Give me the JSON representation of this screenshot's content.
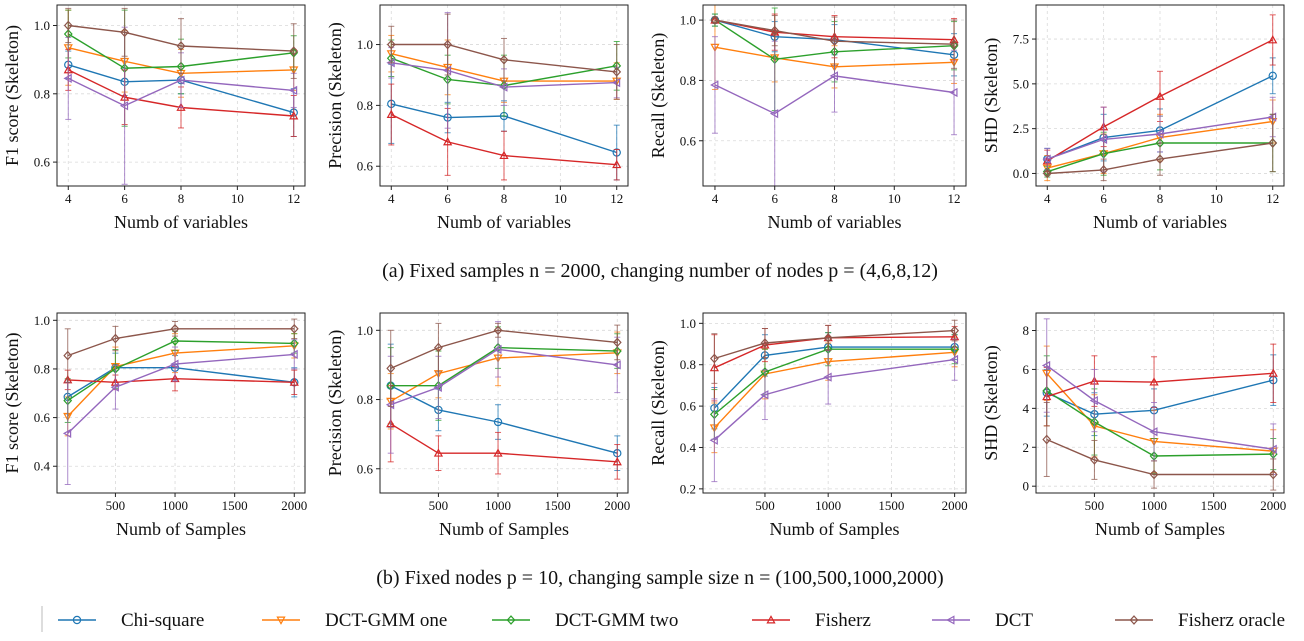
{
  "captions": {
    "a": "(a) Fixed samples n = 2000, changing number of nodes p = (4,6,8,12)",
    "b": "(b) Fixed nodes p = 10, changing sample size n = (100,500,1000,2000)"
  },
  "legend": {
    "items": [
      {
        "label": "Chi-square",
        "color": "#1f77b4",
        "marker": "circle"
      },
      {
        "label": "DCT-GMM  one",
        "color": "#ff7f0e",
        "marker": "triangle-down"
      },
      {
        "label": "DCT-GMM  two",
        "color": "#2ca02c",
        "marker": "diamond"
      },
      {
        "label": "Fisherz",
        "color": "#d62728",
        "marker": "triangle-up"
      },
      {
        "label": "DCT",
        "color": "#9467bd",
        "marker": "triangle-left"
      },
      {
        "label": "Fisherz  oracle",
        "color": "#8c564b",
        "marker": "diamond"
      }
    ]
  },
  "chart_data": [
    {
      "type": "line",
      "row": "a",
      "xlabel": "Numb of variables",
      "ylabel": "F1 score (Skeleton)",
      "x": [
        4,
        6,
        8,
        12
      ],
      "xticks": [
        4,
        6,
        8,
        10,
        12
      ],
      "xlim": [
        3.6,
        12.4
      ],
      "yticks": [
        0.6,
        0.8,
        1.0
      ],
      "ylim": [
        0.53,
        1.06
      ],
      "grid": true,
      "series": [
        {
          "name": "Chi-square",
          "values": [
            0.885,
            0.835,
            0.84,
            0.745
          ],
          "err": [
            0.04,
            0.04,
            0.04,
            0.07
          ]
        },
        {
          "name": "DCT-GMM  one",
          "values": [
            0.935,
            0.895,
            0.86,
            0.87
          ],
          "err": [
            0.11,
            0.09,
            0.07,
            0.06
          ]
        },
        {
          "name": "DCT-GMM  two",
          "values": [
            0.975,
            0.875,
            0.88,
            0.92
          ],
          "err": [
            0.07,
            0.17,
            0.08,
            0.05
          ]
        },
        {
          "name": "Fisherz",
          "values": [
            0.87,
            0.79,
            0.76,
            0.735
          ],
          "err": [
            0.06,
            0.08,
            0.06,
            0.06
          ]
        },
        {
          "name": "DCT",
          "values": [
            0.845,
            0.765,
            0.84,
            0.81
          ],
          "err": [
            0.12,
            0.23,
            0.08,
            0.05
          ]
        },
        {
          "name": "Fisherz  oracle",
          "values": [
            1.0,
            0.98,
            0.94,
            0.925
          ],
          "err": [
            0.05,
            0.07,
            0.08,
            0.08
          ]
        }
      ]
    },
    {
      "type": "line",
      "row": "a",
      "xlabel": "Numb of variables",
      "ylabel": "Precision (Skeleton)",
      "x": [
        4,
        6,
        8,
        12
      ],
      "xticks": [
        4,
        6,
        8,
        10,
        12
      ],
      "xlim": [
        3.6,
        12.4
      ],
      "yticks": [
        0.6,
        0.8,
        1.0
      ],
      "ylim": [
        0.535,
        1.13
      ],
      "grid": true,
      "series": [
        {
          "name": "Chi-square",
          "values": [
            0.805,
            0.76,
            0.765,
            0.645
          ],
          "err": [
            0.13,
            0.05,
            0.05,
            0.09
          ]
        },
        {
          "name": "DCT-GMM  one",
          "values": [
            0.97,
            0.925,
            0.88,
            0.88
          ],
          "err": [
            0.06,
            0.09,
            0.07,
            0.06
          ]
        },
        {
          "name": "DCT-GMM  two",
          "values": [
            0.955,
            0.885,
            0.865,
            0.93
          ],
          "err": [
            0.06,
            0.08,
            0.1,
            0.08
          ]
        },
        {
          "name": "Fisherz",
          "values": [
            0.77,
            0.68,
            0.635,
            0.605
          ],
          "err": [
            0.1,
            0.11,
            0.08,
            0.05
          ]
        },
        {
          "name": "DCT",
          "values": [
            0.94,
            0.915,
            0.86,
            0.875
          ],
          "err": [
            0.05,
            0.19,
            0.06,
            0.05
          ]
        },
        {
          "name": "Fisherz  oracle",
          "values": [
            1.0,
            1.0,
            0.95,
            0.91
          ],
          "err": [
            0.06,
            0.1,
            0.07,
            0.09
          ]
        }
      ]
    },
    {
      "type": "line",
      "row": "a",
      "xlabel": "Numb of variables",
      "ylabel": "Recall (Skeleton)",
      "x": [
        4,
        6,
        8,
        12
      ],
      "xticks": [
        4,
        6,
        8,
        10,
        12
      ],
      "xlim": [
        3.6,
        12.4
      ],
      "yticks": [
        0.6,
        0.8,
        1.0
      ],
      "ylim": [
        0.45,
        1.05
      ],
      "grid": true,
      "series": [
        {
          "name": "Chi-square",
          "values": [
            1.0,
            0.945,
            0.935,
            0.885
          ],
          "err": [
            0.02,
            0.05,
            0.05,
            0.07
          ]
        },
        {
          "name": "DCT-GMM  one",
          "values": [
            0.91,
            0.875,
            0.845,
            0.86
          ],
          "err": [
            0.14,
            0.08,
            0.07,
            0.07
          ]
        },
        {
          "name": "DCT-GMM  two",
          "values": [
            1.0,
            0.87,
            0.895,
            0.915
          ],
          "err": [
            0.02,
            0.17,
            0.1,
            0.08
          ]
        },
        {
          "name": "Fisherz",
          "values": [
            1.0,
            0.96,
            0.945,
            0.935
          ],
          "err": [
            0.01,
            0.06,
            0.07,
            0.07
          ]
        },
        {
          "name": "DCT",
          "values": [
            0.785,
            0.69,
            0.815,
            0.76
          ],
          "err": [
            0.16,
            0.24,
            0.12,
            0.14
          ]
        },
        {
          "name": "Fisherz  oracle",
          "values": [
            1.0,
            0.965,
            0.93,
            0.92
          ],
          "err": [
            0.01,
            0.05,
            0.08,
            0.08
          ]
        }
      ]
    },
    {
      "type": "line",
      "row": "a",
      "xlabel": "Numb of variables",
      "ylabel": "SHD (Skeleton)",
      "x": [
        4,
        6,
        8,
        12
      ],
      "xticks": [
        4,
        6,
        8,
        10,
        12
      ],
      "xlim": [
        3.6,
        12.4
      ],
      "yticks": [
        0.0,
        2.5,
        5.0,
        7.5
      ],
      "yticklabels": [
        "0.0",
        "2.5",
        "5.0",
        "7.5"
      ],
      "ylim": [
        -0.7,
        9.4
      ],
      "grid": true,
      "series": [
        {
          "name": "Chi-square",
          "values": [
            0.8,
            2.0,
            2.4,
            5.45
          ],
          "err": [
            0.6,
            1.3,
            1.2,
            1.0
          ]
        },
        {
          "name": "DCT-GMM  one",
          "values": [
            0.3,
            1.1,
            2.0,
            2.9
          ],
          "err": [
            0.7,
            1.1,
            1.3,
            1.2
          ]
        },
        {
          "name": "DCT-GMM  two",
          "values": [
            0.1,
            1.1,
            1.7,
            1.7
          ],
          "err": [
            0.3,
            1.2,
            1.5,
            1.6
          ]
        },
        {
          "name": "Fisherz",
          "values": [
            0.7,
            2.6,
            4.3,
            7.45
          ],
          "err": [
            0.6,
            1.1,
            1.4,
            1.4
          ]
        },
        {
          "name": "DCT",
          "values": [
            0.8,
            1.9,
            2.2,
            3.15
          ],
          "err": [
            0.6,
            1.8,
            1.0,
            1.1
          ]
        },
        {
          "name": "Fisherz  oracle",
          "values": [
            0.0,
            0.2,
            0.8,
            1.7
          ],
          "err": [
            0.1,
            0.6,
            0.9,
            1.6
          ]
        }
      ]
    },
    {
      "type": "line",
      "row": "b",
      "xlabel": "Numb of Samples",
      "ylabel": "F1 score (Skeleton)",
      "x": [
        100,
        500,
        1000,
        2000
      ],
      "xticks": [
        500,
        1000,
        1500,
        2000
      ],
      "xlim": [
        10,
        2090
      ],
      "yticks": [
        0.4,
        0.6,
        0.8,
        1.0
      ],
      "ylim": [
        0.29,
        1.03
      ],
      "grid": true,
      "series": [
        {
          "name": "Chi-square",
          "values": [
            0.685,
            0.805,
            0.805,
            0.745
          ],
          "err": [
            0.07,
            0.06,
            0.05,
            0.06
          ]
        },
        {
          "name": "DCT-GMM  one",
          "values": [
            0.605,
            0.81,
            0.865,
            0.895
          ],
          "err": [
            0.08,
            0.08,
            0.08,
            0.05
          ]
        },
        {
          "name": "DCT-GMM  two",
          "values": [
            0.67,
            0.8,
            0.915,
            0.905
          ],
          "err": [
            0.09,
            0.08,
            0.04,
            0.04
          ]
        },
        {
          "name": "Fisherz",
          "values": [
            0.755,
            0.745,
            0.76,
            0.745
          ],
          "err": [
            0.04,
            0.03,
            0.05,
            0.05
          ]
        },
        {
          "name": "DCT",
          "values": [
            0.535,
            0.725,
            0.82,
            0.86
          ],
          "err": [
            0.21,
            0.09,
            0.07,
            0.06
          ]
        },
        {
          "name": "Fisherz  oracle",
          "values": [
            0.855,
            0.925,
            0.965,
            0.965
          ],
          "err": [
            0.11,
            0.05,
            0.03,
            0.04
          ]
        }
      ]
    },
    {
      "type": "line",
      "row": "b",
      "xlabel": "Numb of Samples",
      "ylabel": "Precision (Skeleton)",
      "x": [
        100,
        500,
        1000,
        2000
      ],
      "xticks": [
        500,
        1000,
        1500,
        2000
      ],
      "xlim": [
        10,
        2090
      ],
      "yticks": [
        0.6,
        0.8,
        1.0
      ],
      "ylim": [
        0.53,
        1.05
      ],
      "grid": true,
      "series": [
        {
          "name": "Chi-square",
          "values": [
            0.84,
            0.77,
            0.735,
            0.645
          ],
          "err": [
            0.12,
            0.06,
            0.05,
            0.05
          ]
        },
        {
          "name": "DCT-GMM  one",
          "values": [
            0.795,
            0.875,
            0.92,
            0.935
          ],
          "err": [
            0.08,
            0.07,
            0.08,
            0.06
          ]
        },
        {
          "name": "DCT-GMM  two",
          "values": [
            0.84,
            0.84,
            0.95,
            0.94
          ],
          "err": [
            0.11,
            0.1,
            0.06,
            0.05
          ]
        },
        {
          "name": "Fisherz",
          "values": [
            0.73,
            0.645,
            0.645,
            0.62
          ],
          "err": [
            0.11,
            0.05,
            0.06,
            0.05
          ]
        },
        {
          "name": "DCT",
          "values": [
            0.785,
            0.835,
            0.945,
            0.9
          ],
          "err": [
            0.14,
            0.09,
            0.08,
            0.08
          ]
        },
        {
          "name": "Fisherz  oracle",
          "values": [
            0.89,
            0.95,
            1.0,
            0.965
          ],
          "err": [
            0.11,
            0.07,
            0.02,
            0.05
          ]
        }
      ]
    },
    {
      "type": "line",
      "row": "b",
      "xlabel": "Numb of Samples",
      "ylabel": "Recall (Skeleton)",
      "x": [
        100,
        500,
        1000,
        2000
      ],
      "xticks": [
        500,
        1000,
        1500,
        2000
      ],
      "xlim": [
        10,
        2090
      ],
      "yticks": [
        0.2,
        0.4,
        0.6,
        0.8,
        1.0
      ],
      "ylim": [
        0.18,
        1.05
      ],
      "grid": true,
      "series": [
        {
          "name": "Chi-square",
          "values": [
            0.59,
            0.845,
            0.885,
            0.885
          ],
          "err": [
            0.1,
            0.1,
            0.07,
            0.06
          ]
        },
        {
          "name": "DCT-GMM  one",
          "values": [
            0.495,
            0.755,
            0.815,
            0.86
          ],
          "err": [
            0.12,
            0.12,
            0.09,
            0.07
          ]
        },
        {
          "name": "DCT-GMM  two",
          "values": [
            0.56,
            0.765,
            0.875,
            0.875
          ],
          "err": [
            0.12,
            0.11,
            0.08,
            0.07
          ]
        },
        {
          "name": "Fisherz",
          "values": [
            0.785,
            0.895,
            0.93,
            0.935
          ],
          "err": [
            0.16,
            0.08,
            0.06,
            0.05
          ]
        },
        {
          "name": "DCT",
          "values": [
            0.435,
            0.655,
            0.74,
            0.825
          ],
          "err": [
            0.2,
            0.12,
            0.13,
            0.1
          ]
        },
        {
          "name": "Fisherz  oracle",
          "values": [
            0.83,
            0.905,
            0.93,
            0.965
          ],
          "err": [
            0.12,
            0.07,
            0.06,
            0.05
          ]
        }
      ]
    },
    {
      "type": "line",
      "row": "b",
      "xlabel": "Numb of Samples",
      "ylabel": "SHD (Skeleton)",
      "x": [
        100,
        500,
        1000,
        2000
      ],
      "xticks": [
        500,
        1000,
        1500,
        2000
      ],
      "xlim": [
        10,
        2090
      ],
      "yticks": [
        0,
        2,
        4,
        6,
        8
      ],
      "ylim": [
        -0.35,
        8.9
      ],
      "grid": true,
      "series": [
        {
          "name": "Chi-square",
          "values": [
            4.8,
            3.7,
            3.9,
            5.45
          ],
          "err": [
            1.2,
            1.1,
            1.1,
            1.3
          ]
        },
        {
          "name": "DCT-GMM  one",
          "values": [
            5.8,
            3.1,
            2.3,
            1.8
          ],
          "err": [
            1.4,
            1.6,
            1.6,
            1.1
          ]
        },
        {
          "name": "DCT-GMM  two",
          "values": [
            4.9,
            3.3,
            1.55,
            1.65
          ],
          "err": [
            1.8,
            1.7,
            0.9,
            0.8
          ]
        },
        {
          "name": "Fisherz",
          "values": [
            4.6,
            5.4,
            5.35,
            5.8
          ],
          "err": [
            1.5,
            1.3,
            1.3,
            1.5
          ]
        },
        {
          "name": "DCT",
          "values": [
            6.2,
            4.4,
            2.8,
            1.9
          ],
          "err": [
            2.4,
            1.6,
            1.5,
            1.3
          ]
        },
        {
          "name": "Fisherz  oracle",
          "values": [
            2.4,
            1.35,
            0.6,
            0.6
          ],
          "err": [
            1.9,
            1.0,
            0.7,
            0.8
          ]
        }
      ]
    }
  ]
}
